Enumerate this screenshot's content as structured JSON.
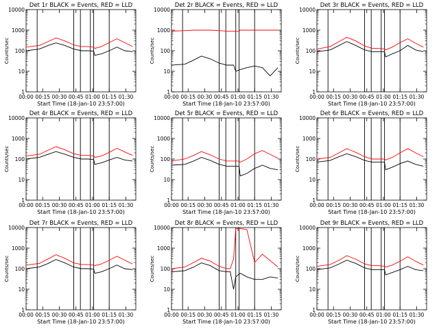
{
  "figure": {
    "x_axis_title": "Start Time (18-Jan-10 23:57:00)",
    "y_axis_title": "Counts/sec",
    "colors": {
      "events": "#000000",
      "lld": "#ff0000",
      "marker": "#000000"
    }
  },
  "chart_data": [
    {
      "type": "line",
      "title": "Det 1r BLACK = Events, RED = LLD",
      "x_ticks": [
        "00:00",
        "00:15",
        "00:30",
        "00:45",
        "01:00",
        "01:15",
        "01:30"
      ],
      "y_ticks": [
        "1",
        "10",
        "100",
        "1000",
        "10000"
      ],
      "y_scale": "log",
      "ylim": [
        1,
        10000
      ],
      "x_range_minutes": [
        0,
        99
      ],
      "vlines_minutes": [
        10,
        43,
        49,
        58,
        61,
        75
      ],
      "series": [
        {
          "name": "Events",
          "color": "#000000",
          "x": [
            0,
            12,
            20,
            27,
            35,
            43,
            50,
            56,
            61,
            62,
            68,
            75,
            82,
            89,
            96
          ],
          "y": [
            100,
            120,
            180,
            240,
            180,
            120,
            100,
            100,
            95,
            60,
            70,
            100,
            150,
            100,
            90
          ]
        },
        {
          "name": "LLD",
          "color": "#ff0000",
          "x": [
            0,
            12,
            20,
            27,
            35,
            43,
            50,
            56,
            61,
            62,
            68,
            75,
            82,
            89,
            96
          ],
          "y": [
            150,
            180,
            280,
            420,
            300,
            190,
            160,
            160,
            150,
            130,
            160,
            250,
            380,
            250,
            160
          ]
        }
      ]
    },
    {
      "type": "line",
      "title": "Det 2r BLACK = Events, RED = LLD",
      "x_ticks": [
        "00:00",
        "00:15",
        "00:30",
        "00:45",
        "01:00",
        "01:15",
        "01:30"
      ],
      "y_ticks": [
        "1",
        "10",
        "100",
        "1000",
        "10000"
      ],
      "y_scale": "log",
      "ylim": [
        1,
        10000
      ],
      "x_range_minutes": [
        0,
        99
      ],
      "vlines_minutes": [
        10,
        43,
        49,
        58,
        61,
        75
      ],
      "series": [
        {
          "name": "Events",
          "color": "#000000",
          "x": [
            0,
            12,
            20,
            27,
            35,
            43,
            50,
            56,
            58,
            62,
            68,
            75,
            82,
            89,
            96
          ],
          "y": [
            20,
            22,
            35,
            55,
            40,
            25,
            20,
            20,
            10,
            12,
            15,
            18,
            15,
            6,
            15
          ]
        },
        {
          "name": "LLD",
          "color": "#ff0000",
          "x": [
            0,
            12,
            20,
            27,
            35,
            43,
            50,
            56,
            61,
            62,
            68,
            75,
            82,
            89,
            96
          ],
          "y": [
            900,
            950,
            1000,
            1000,
            1000,
            950,
            900,
            900,
            900,
            1000,
            1000,
            1000,
            1000,
            1000,
            1000
          ]
        }
      ]
    },
    {
      "type": "line",
      "title": "Det 3r BLACK = Events, RED = LLD",
      "x_ticks": [
        "00:00",
        "00:15",
        "00:30",
        "00:45",
        "01:00",
        "01:15",
        "01:30"
      ],
      "y_ticks": [
        "1",
        "10",
        "100",
        "1000",
        "10000"
      ],
      "y_scale": "log",
      "ylim": [
        1,
        10000
      ],
      "x_range_minutes": [
        0,
        99
      ],
      "vlines_minutes": [
        10,
        43,
        49,
        58,
        61,
        75
      ],
      "series": [
        {
          "name": "Events",
          "color": "#000000",
          "x": [
            0,
            12,
            20,
            27,
            35,
            43,
            50,
            56,
            61,
            62,
            68,
            75,
            82,
            89,
            96
          ],
          "y": [
            90,
            110,
            180,
            280,
            180,
            110,
            90,
            90,
            90,
            50,
            70,
            100,
            180,
            110,
            90
          ]
        },
        {
          "name": "LLD",
          "color": "#ff0000",
          "x": [
            0,
            12,
            20,
            27,
            35,
            43,
            50,
            56,
            61,
            62,
            68,
            75,
            82,
            89,
            96
          ],
          "y": [
            120,
            160,
            280,
            450,
            300,
            170,
            130,
            130,
            120,
            110,
            150,
            250,
            380,
            230,
            150
          ]
        }
      ]
    },
    {
      "type": "line",
      "title": "Det 4r BLACK = Events, RED = LLD",
      "x_ticks": [
        "00:00",
        "00:15",
        "00:30",
        "00:45",
        "01:00",
        "01:15",
        "01:30"
      ],
      "y_ticks": [
        "1",
        "10",
        "100",
        "1000",
        "10000"
      ],
      "y_scale": "log",
      "ylim": [
        1,
        10000
      ],
      "x_range_minutes": [
        0,
        99
      ],
      "vlines_minutes": [
        10,
        43,
        49,
        58,
        61,
        75
      ],
      "series": [
        {
          "name": "Events",
          "color": "#000000",
          "x": [
            0,
            12,
            20,
            27,
            35,
            43,
            50,
            56,
            61,
            62,
            68,
            75,
            82,
            89,
            96
          ],
          "y": [
            100,
            120,
            170,
            230,
            170,
            120,
            100,
            100,
            95,
            55,
            65,
            90,
            120,
            90,
            80
          ]
        },
        {
          "name": "LLD",
          "color": "#ff0000",
          "x": [
            0,
            12,
            20,
            27,
            35,
            43,
            50,
            56,
            61,
            62,
            68,
            75,
            82,
            89,
            96
          ],
          "y": [
            140,
            170,
            270,
            400,
            280,
            180,
            150,
            150,
            140,
            120,
            140,
            210,
            330,
            220,
            150
          ]
        }
      ]
    },
    {
      "type": "line",
      "title": "Det 5r BLACK = Events, RED = LLD",
      "x_ticks": [
        "00:00",
        "00:15",
        "00:30",
        "00:45",
        "01:00",
        "01:15",
        "01:30"
      ],
      "y_ticks": [
        "1",
        "10",
        "100",
        "1000",
        "10000"
      ],
      "y_scale": "log",
      "ylim": [
        1,
        10000
      ],
      "x_range_minutes": [
        0,
        99
      ],
      "vlines_minutes": [
        10,
        43,
        49,
        58,
        61,
        75
      ],
      "series": [
        {
          "name": "Events",
          "color": "#000000",
          "x": [
            0,
            12,
            20,
            27,
            35,
            43,
            50,
            56,
            61,
            62,
            68,
            75,
            82,
            89,
            96
          ],
          "y": [
            50,
            55,
            80,
            120,
            85,
            55,
            45,
            45,
            45,
            15,
            20,
            35,
            50,
            35,
            30
          ]
        },
        {
          "name": "LLD",
          "color": "#ff0000",
          "x": [
            0,
            12,
            20,
            27,
            35,
            43,
            50,
            56,
            61,
            62,
            68,
            75,
            82,
            89,
            96
          ],
          "y": [
            80,
            100,
            150,
            230,
            160,
            100,
            80,
            80,
            80,
            70,
            100,
            180,
            260,
            170,
            110
          ]
        }
      ]
    },
    {
      "type": "line",
      "title": "Det 6r BLACK = Events, RED = LLD",
      "x_ticks": [
        "00:00",
        "00:15",
        "00:30",
        "00:45",
        "01:00",
        "01:15",
        "01:30"
      ],
      "y_ticks": [
        "1",
        "10",
        "100",
        "1000",
        "10000"
      ],
      "y_scale": "log",
      "ylim": [
        1,
        10000
      ],
      "x_range_minutes": [
        0,
        99
      ],
      "vlines_minutes": [
        10,
        43,
        49,
        58,
        61,
        75
      ],
      "series": [
        {
          "name": "Events",
          "color": "#000000",
          "x": [
            0,
            12,
            20,
            27,
            35,
            43,
            50,
            56,
            61,
            62,
            68,
            75,
            82,
            89,
            96
          ],
          "y": [
            70,
            85,
            130,
            180,
            130,
            85,
            70,
            70,
            70,
            30,
            40,
            60,
            80,
            55,
            45
          ]
        },
        {
          "name": "LLD",
          "color": "#ff0000",
          "x": [
            0,
            12,
            20,
            27,
            35,
            43,
            50,
            56,
            61,
            62,
            68,
            75,
            82,
            89,
            96
          ],
          "y": [
            100,
            120,
            200,
            320,
            210,
            130,
            100,
            100,
            100,
            90,
            120,
            200,
            320,
            200,
            130
          ]
        }
      ]
    },
    {
      "type": "line",
      "title": "Det 7r BLACK = Events, RED = LLD",
      "x_ticks": [
        "00:00",
        "00:15",
        "00:30",
        "00:45",
        "01:00",
        "01:15",
        "01:30"
      ],
      "y_ticks": [
        "1",
        "10",
        "100",
        "1000",
        "10000"
      ],
      "y_scale": "log",
      "ylim": [
        1,
        10000
      ],
      "x_range_minutes": [
        0,
        99
      ],
      "vlines_minutes": [
        10,
        43,
        49,
        58,
        61,
        75
      ],
      "series": [
        {
          "name": "Events",
          "color": "#000000",
          "x": [
            0,
            12,
            20,
            27,
            35,
            43,
            50,
            56,
            61,
            62,
            68,
            75,
            82,
            89,
            96
          ],
          "y": [
            100,
            120,
            180,
            280,
            190,
            120,
            100,
            100,
            95,
            60,
            70,
            100,
            150,
            100,
            90
          ]
        },
        {
          "name": "LLD",
          "color": "#ff0000",
          "x": [
            0,
            12,
            20,
            27,
            35,
            43,
            50,
            56,
            61,
            62,
            68,
            75,
            82,
            89,
            96
          ],
          "y": [
            150,
            180,
            300,
            480,
            320,
            190,
            160,
            160,
            150,
            140,
            170,
            260,
            400,
            260,
            170
          ]
        }
      ]
    },
    {
      "type": "line",
      "title": "Det 8r BLACK = Events, RED = LLD",
      "x_ticks": [
        "00:00",
        "00:15",
        "00:30",
        "00:45",
        "01:00",
        "01:15",
        "01:30"
      ],
      "y_ticks": [
        "1",
        "10",
        "100",
        "1000",
        "10000"
      ],
      "y_scale": "log",
      "ylim": [
        1,
        10000
      ],
      "x_range_minutes": [
        0,
        99
      ],
      "vlines_minutes": [
        10,
        43,
        49,
        58,
        61,
        75
      ],
      "series": [
        {
          "name": "Events",
          "color": "#000000",
          "x": [
            0,
            12,
            20,
            27,
            35,
            43,
            50,
            53,
            56,
            58,
            62,
            68,
            75,
            82,
            89,
            96
          ],
          "y": [
            70,
            80,
            120,
            190,
            140,
            80,
            70,
            70,
            10,
            40,
            60,
            40,
            30,
            30,
            40,
            35
          ]
        },
        {
          "name": "LLD",
          "color": "#ff0000",
          "x": [
            0,
            12,
            20,
            27,
            35,
            43,
            50,
            53,
            56,
            58,
            62,
            68,
            75,
            82,
            89,
            96
          ],
          "y": [
            100,
            120,
            200,
            320,
            230,
            130,
            100,
            100,
            300,
            9000,
            9000,
            8000,
            200,
            500,
            250,
            120
          ]
        }
      ]
    },
    {
      "type": "line",
      "title": "Det 9r BLACK = Events, RED = LLD",
      "x_ticks": [
        "00:00",
        "00:15",
        "00:30",
        "00:45",
        "01:00",
        "01:15",
        "01:30"
      ],
      "y_ticks": [
        "1",
        "10",
        "100",
        "1000",
        "10000"
      ],
      "y_scale": "log",
      "ylim": [
        1,
        10000
      ],
      "x_range_minutes": [
        0,
        99
      ],
      "vlines_minutes": [
        10,
        43,
        49,
        58,
        61,
        75
      ],
      "series": [
        {
          "name": "Events",
          "color": "#000000",
          "x": [
            0,
            12,
            20,
            27,
            35,
            43,
            50,
            56,
            61,
            62,
            68,
            75,
            82,
            89,
            96
          ],
          "y": [
            90,
            110,
            170,
            260,
            180,
            110,
            90,
            90,
            90,
            50,
            65,
            90,
            130,
            90,
            80
          ]
        },
        {
          "name": "LLD",
          "color": "#ff0000",
          "x": [
            0,
            12,
            20,
            27,
            35,
            43,
            50,
            56,
            61,
            62,
            68,
            75,
            82,
            89,
            96
          ],
          "y": [
            130,
            160,
            260,
            430,
            290,
            170,
            140,
            140,
            130,
            120,
            150,
            230,
            380,
            230,
            150
          ]
        }
      ]
    }
  ]
}
